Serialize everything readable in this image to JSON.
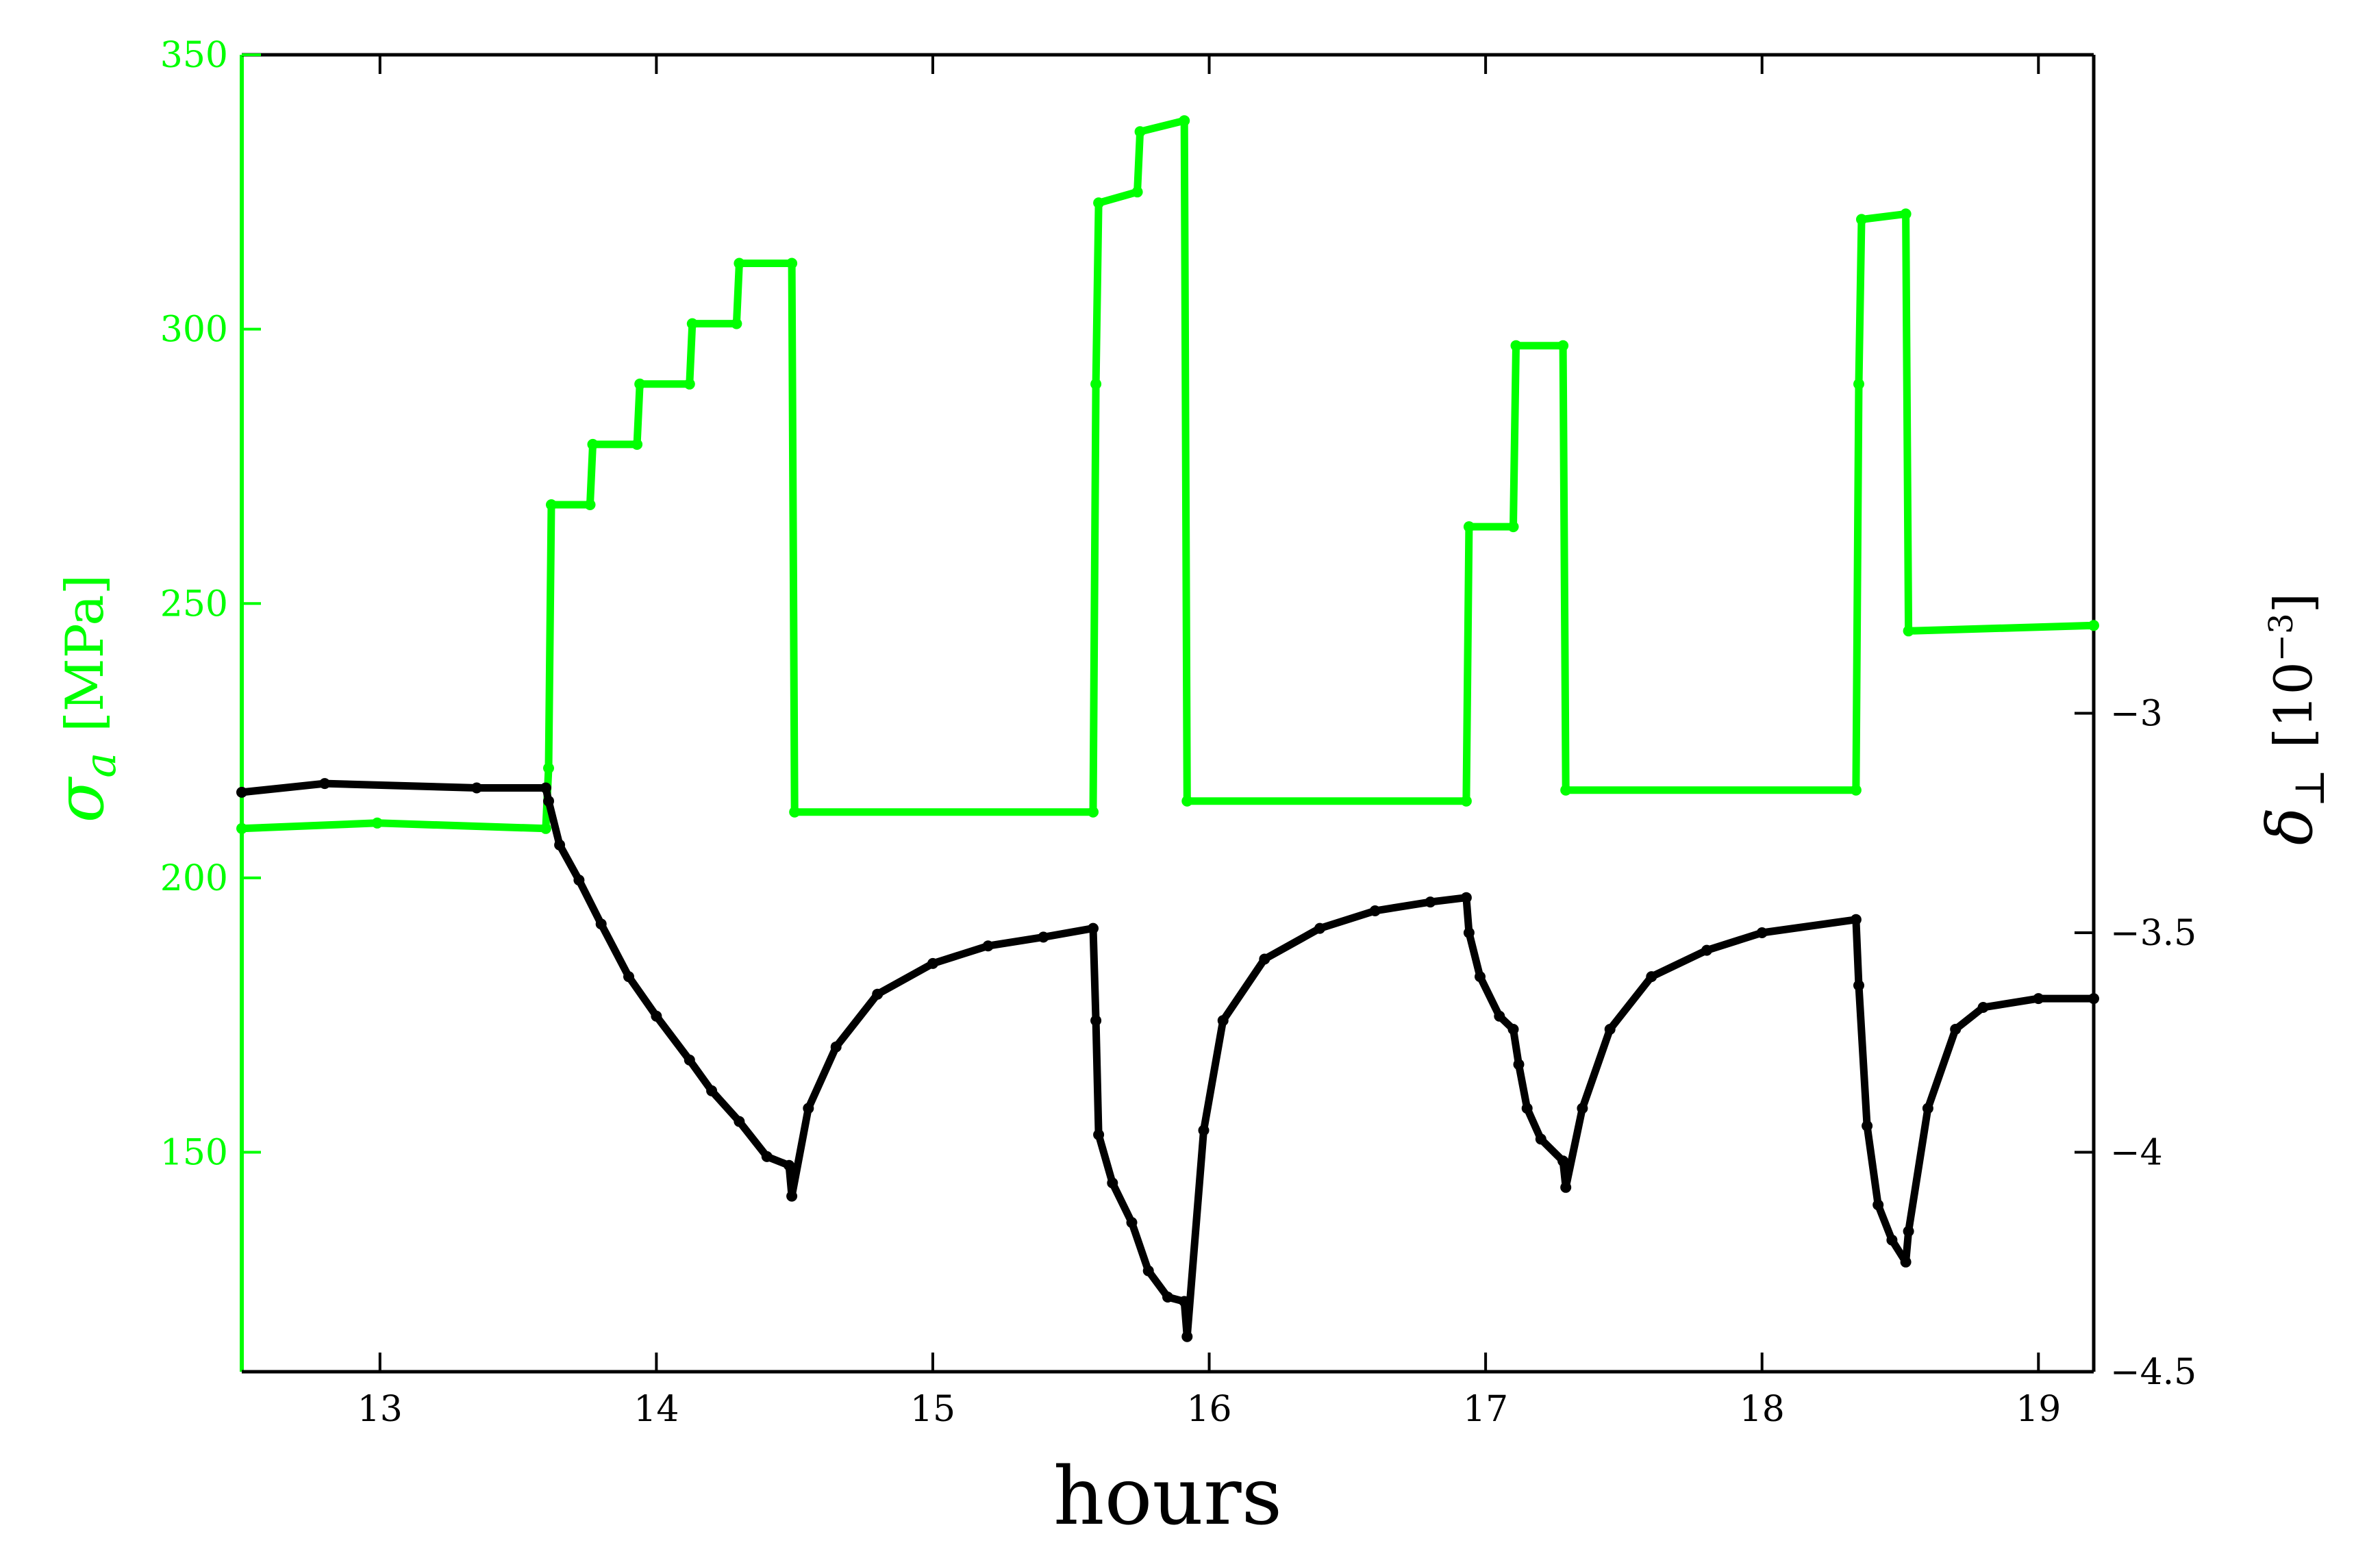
{
  "chart_data": {
    "type": "line",
    "xlabel": "hours",
    "xlim": [
      12.5,
      19.2
    ],
    "xticks": [
      "13",
      "14",
      "15",
      "16",
      "17",
      "18",
      "19"
    ],
    "ylabel_left": {
      "symbol": "σ",
      "subscript": "a",
      "unit": "[MPa]"
    },
    "ylim_left": [
      110,
      350
    ],
    "yticks_left": [
      "150",
      "200",
      "250",
      "300",
      "350"
    ],
    "ylabel_right": {
      "symbol": "δ",
      "subscript": "⊥",
      "unit_base": "[10",
      "unit_exp": "−3",
      "unit_close": "]"
    },
    "ylim_right": [
      -4.5,
      -1.5
    ],
    "yticks_right": [
      "−3",
      "−3.5",
      "−4",
      "−4.5"
    ],
    "grid": false,
    "colors": {
      "stress": "#00ff00",
      "strain": "#000000"
    },
    "series": [
      {
        "axis": "left",
        "points": [
          [
            12.5,
            209
          ],
          [
            12.99,
            210
          ],
          [
            13.6,
            209
          ],
          [
            13.61,
            220
          ],
          [
            13.62,
            268
          ],
          [
            13.76,
            268
          ],
          [
            13.77,
            279
          ],
          [
            13.93,
            279
          ],
          [
            13.94,
            290
          ],
          [
            14.12,
            290
          ],
          [
            14.13,
            301
          ],
          [
            14.29,
            301
          ],
          [
            14.3,
            312
          ],
          [
            14.49,
            312
          ],
          [
            14.5,
            212
          ],
          [
            15.58,
            212
          ],
          [
            15.59,
            290
          ],
          [
            15.6,
            323
          ],
          [
            15.74,
            325
          ],
          [
            15.75,
            336
          ],
          [
            15.91,
            338
          ],
          [
            15.92,
            214
          ],
          [
            16.93,
            214
          ],
          [
            16.94,
            264
          ],
          [
            17.1,
            264
          ],
          [
            17.11,
            297
          ],
          [
            17.28,
            297
          ],
          [
            17.29,
            216
          ],
          [
            18.34,
            216
          ],
          [
            18.35,
            290
          ],
          [
            18.36,
            320
          ],
          [
            18.52,
            321
          ],
          [
            18.53,
            245
          ],
          [
            19.2,
            246
          ]
        ]
      },
      {
        "axis": "right",
        "points": [
          [
            12.5,
            -3.18
          ],
          [
            12.8,
            -3.16
          ],
          [
            13.35,
            -3.17
          ],
          [
            13.6,
            -3.17
          ],
          [
            13.61,
            -3.2
          ],
          [
            13.65,
            -3.3
          ],
          [
            13.72,
            -3.38
          ],
          [
            13.8,
            -3.48
          ],
          [
            13.9,
            -3.6
          ],
          [
            14.0,
            -3.69
          ],
          [
            14.12,
            -3.79
          ],
          [
            14.2,
            -3.86
          ],
          [
            14.3,
            -3.93
          ],
          [
            14.4,
            -4.01
          ],
          [
            14.48,
            -4.03
          ],
          [
            14.49,
            -4.1
          ],
          [
            14.55,
            -3.9
          ],
          [
            14.65,
            -3.76
          ],
          [
            14.8,
            -3.64
          ],
          [
            15.0,
            -3.57
          ],
          [
            15.2,
            -3.53
          ],
          [
            15.4,
            -3.51
          ],
          [
            15.58,
            -3.49
          ],
          [
            15.59,
            -3.7
          ],
          [
            15.6,
            -3.96
          ],
          [
            15.65,
            -4.07
          ],
          [
            15.72,
            -4.16
          ],
          [
            15.78,
            -4.27
          ],
          [
            15.85,
            -4.33
          ],
          [
            15.91,
            -4.34
          ],
          [
            15.92,
            -4.42
          ],
          [
            15.98,
            -3.95
          ],
          [
            16.05,
            -3.7
          ],
          [
            16.2,
            -3.56
          ],
          [
            16.4,
            -3.49
          ],
          [
            16.6,
            -3.45
          ],
          [
            16.8,
            -3.43
          ],
          [
            16.93,
            -3.42
          ],
          [
            16.94,
            -3.5
          ],
          [
            16.98,
            -3.6
          ],
          [
            17.05,
            -3.69
          ],
          [
            17.1,
            -3.72
          ],
          [
            17.12,
            -3.8
          ],
          [
            17.15,
            -3.9
          ],
          [
            17.2,
            -3.97
          ],
          [
            17.28,
            -4.02
          ],
          [
            17.29,
            -4.08
          ],
          [
            17.35,
            -3.9
          ],
          [
            17.45,
            -3.72
          ],
          [
            17.6,
            -3.6
          ],
          [
            17.8,
            -3.54
          ],
          [
            18.0,
            -3.5
          ],
          [
            18.34,
            -3.47
          ],
          [
            18.35,
            -3.62
          ],
          [
            18.38,
            -3.94
          ],
          [
            18.42,
            -4.12
          ],
          [
            18.47,
            -4.2
          ],
          [
            18.52,
            -4.25
          ],
          [
            18.53,
            -4.18
          ],
          [
            18.6,
            -3.9
          ],
          [
            18.7,
            -3.72
          ],
          [
            18.8,
            -3.67
          ],
          [
            19.0,
            -3.65
          ],
          [
            19.2,
            -3.65
          ]
        ]
      }
    ]
  }
}
